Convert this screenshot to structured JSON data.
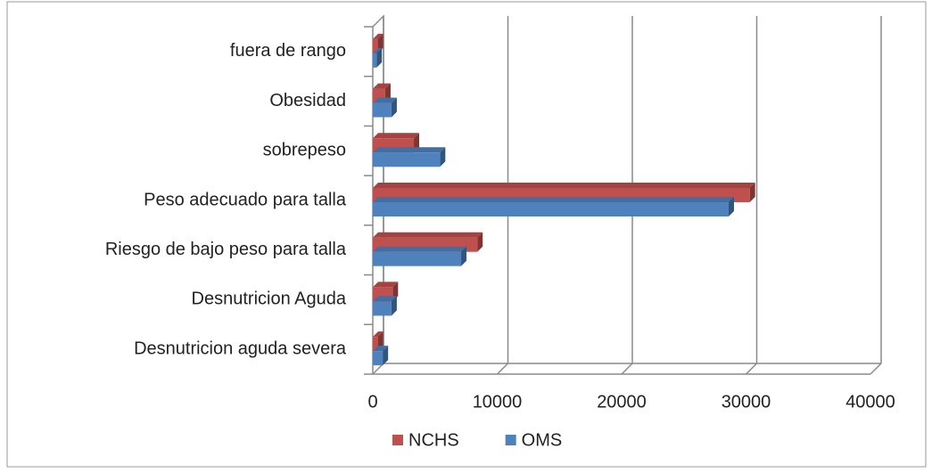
{
  "chart_data": {
    "type": "bar3d_horizontal",
    "categories": [
      "Desnutricion aguda severa",
      "Desnutricion Aguda",
      "Riesgo de bajo peso para talla",
      "Peso adecuado para talla",
      "sobrepeso",
      "Obesidad",
      "fuera de rango"
    ],
    "series": [
      {
        "name": "NCHS",
        "color": "#c0504d",
        "values": [
          400,
          1600,
          8400,
          30300,
          3300,
          1000,
          400
        ]
      },
      {
        "name": "OMS",
        "color": "#4f81bd",
        "values": [
          800,
          1500,
          7100,
          28600,
          5400,
          1500,
          300
        ]
      }
    ],
    "xlim": [
      0,
      40000
    ],
    "xticks": [
      0,
      10000,
      20000,
      30000,
      40000
    ],
    "grid": true
  }
}
